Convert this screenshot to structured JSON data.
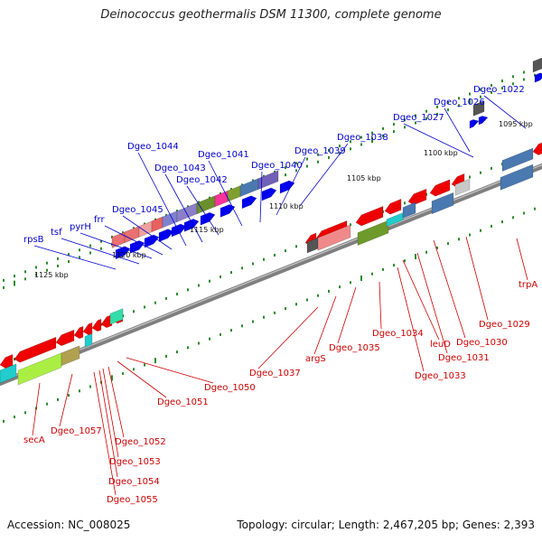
{
  "title": "Deinococcus geothermalis DSM 11300, complete genome",
  "footer": {
    "accession": "Accession: NC_008025",
    "summary": "Topology: circular; Length: 2,467,205 bp; Genes: 2,393"
  },
  "colors": {
    "upper_labels": "#0000cc",
    "lower_labels": "#cc0000",
    "ticks": "#2d8a2d",
    "backbone": "#7f7f7f"
  },
  "scale_labels": [
    "1095 kbp",
    "1100 kbp",
    "1105 kbp",
    "1110 kbp",
    "1115 kbp",
    "1120 kbp",
    "1125 kbp"
  ],
  "upper_gene_labels": [
    "Dgeo_1022",
    "Dgeo_1026",
    "Dgeo_1027",
    "Dgeo_1038",
    "Dgeo_1039",
    "Dgeo_1040",
    "Dgeo_1041",
    "Dgeo_1042",
    "Dgeo_1043",
    "Dgeo_1044",
    "Dgeo_1045",
    "frr",
    "pyrH",
    "tsf",
    "rpsB"
  ],
  "lower_gene_labels": [
    "trpA",
    "Dgeo_1029",
    "Dgeo_1030",
    "Dgeo_1031",
    "leuD",
    "Dgeo_1033",
    "Dgeo_1034",
    "Dgeo_1035",
    "argS",
    "Dgeo_1037",
    "Dgeo_1050",
    "Dgeo_1051",
    "Dgeo_1052",
    "Dgeo_1053",
    "Dgeo_1054",
    "Dgeo_1055",
    "Dgeo_1057",
    "secA"
  ]
}
